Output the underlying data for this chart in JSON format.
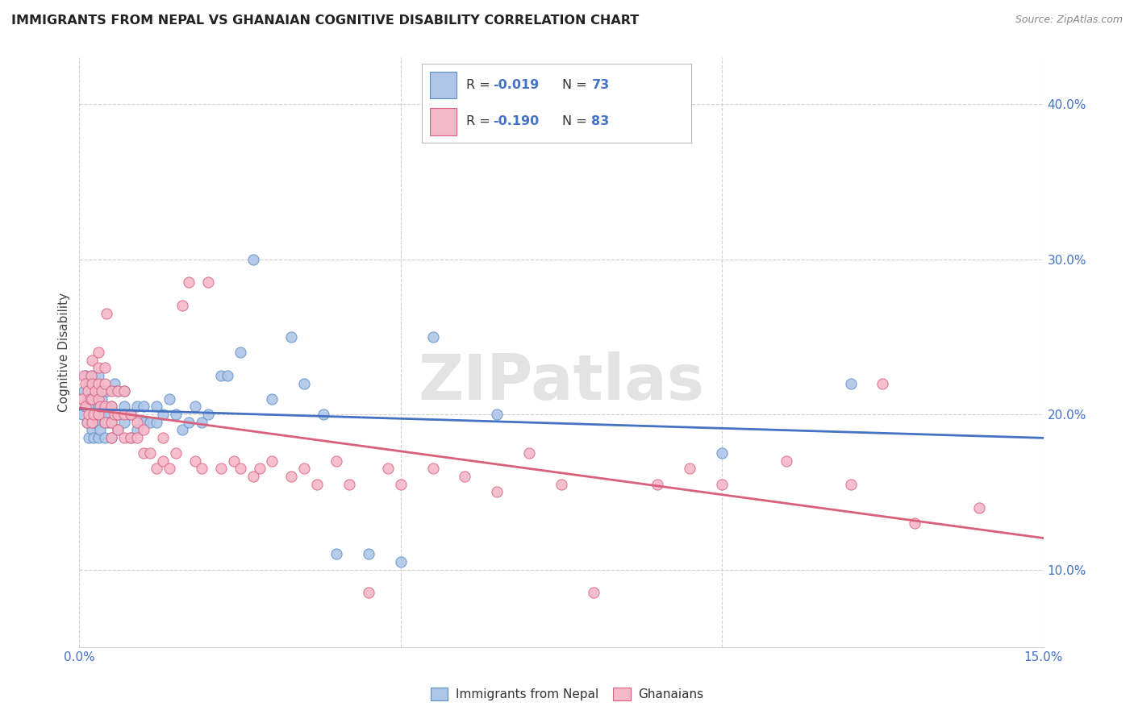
{
  "title": "IMMIGRANTS FROM NEPAL VS GHANAIAN COGNITIVE DISABILITY CORRELATION CHART",
  "source": "Source: ZipAtlas.com",
  "ylabel": "Cognitive Disability",
  "xlim": [
    0.0,
    0.15
  ],
  "ylim": [
    0.05,
    0.43
  ],
  "nepal_color": "#aec6e8",
  "nepal_edge_color": "#5b8ec4",
  "ghana_color": "#f5b8c8",
  "ghana_edge_color": "#d96080",
  "nepal_line_color": "#4472c4",
  "ghana_line_color": "#d9607a",
  "nepal_R": -0.019,
  "nepal_N": 73,
  "ghana_R": -0.19,
  "ghana_N": 83,
  "legend_label_nepal": "Immigrants from Nepal",
  "legend_label_ghana": "Ghanaians",
  "watermark": "ZIPatlas",
  "background_color": "#ffffff",
  "grid_color": "#d0d0d0",
  "nepal_x": [
    0.0005,
    0.0007,
    0.001,
    0.001,
    0.0012,
    0.0013,
    0.0015,
    0.0015,
    0.0017,
    0.0018,
    0.002,
    0.002,
    0.002,
    0.002,
    0.0022,
    0.0022,
    0.0025,
    0.0025,
    0.003,
    0.003,
    0.003,
    0.003,
    0.003,
    0.0032,
    0.0033,
    0.0035,
    0.004,
    0.004,
    0.004,
    0.0042,
    0.0045,
    0.005,
    0.005,
    0.005,
    0.0055,
    0.006,
    0.006,
    0.006,
    0.007,
    0.007,
    0.007,
    0.008,
    0.008,
    0.009,
    0.009,
    0.01,
    0.01,
    0.011,
    0.012,
    0.012,
    0.013,
    0.014,
    0.015,
    0.016,
    0.017,
    0.018,
    0.019,
    0.02,
    0.022,
    0.023,
    0.025,
    0.027,
    0.03,
    0.033,
    0.035,
    0.038,
    0.04,
    0.045,
    0.05,
    0.055,
    0.065,
    0.1,
    0.12
  ],
  "nepal_y": [
    0.2,
    0.215,
    0.205,
    0.225,
    0.195,
    0.21,
    0.185,
    0.22,
    0.195,
    0.205,
    0.19,
    0.2,
    0.215,
    0.225,
    0.185,
    0.195,
    0.2,
    0.21,
    0.185,
    0.195,
    0.205,
    0.215,
    0.225,
    0.19,
    0.2,
    0.21,
    0.185,
    0.195,
    0.2,
    0.215,
    0.195,
    0.185,
    0.195,
    0.205,
    0.22,
    0.19,
    0.2,
    0.215,
    0.195,
    0.205,
    0.215,
    0.185,
    0.2,
    0.19,
    0.205,
    0.195,
    0.205,
    0.195,
    0.195,
    0.205,
    0.2,
    0.21,
    0.2,
    0.19,
    0.195,
    0.205,
    0.195,
    0.2,
    0.225,
    0.225,
    0.24,
    0.3,
    0.21,
    0.25,
    0.22,
    0.2,
    0.11,
    0.11,
    0.105,
    0.25,
    0.2,
    0.175,
    0.22
  ],
  "ghana_x": [
    0.0005,
    0.0007,
    0.001,
    0.001,
    0.0012,
    0.0013,
    0.0015,
    0.0017,
    0.0018,
    0.002,
    0.002,
    0.002,
    0.002,
    0.0022,
    0.0025,
    0.003,
    0.003,
    0.003,
    0.003,
    0.003,
    0.0032,
    0.0035,
    0.004,
    0.004,
    0.004,
    0.004,
    0.0042,
    0.005,
    0.005,
    0.005,
    0.005,
    0.0055,
    0.006,
    0.006,
    0.006,
    0.007,
    0.007,
    0.007,
    0.008,
    0.008,
    0.009,
    0.009,
    0.01,
    0.01,
    0.011,
    0.012,
    0.013,
    0.013,
    0.014,
    0.015,
    0.016,
    0.017,
    0.018,
    0.019,
    0.02,
    0.022,
    0.024,
    0.025,
    0.027,
    0.028,
    0.03,
    0.033,
    0.035,
    0.037,
    0.04,
    0.042,
    0.045,
    0.048,
    0.05,
    0.055,
    0.06,
    0.065,
    0.07,
    0.075,
    0.08,
    0.09,
    0.095,
    0.1,
    0.11,
    0.12,
    0.125,
    0.13,
    0.14
  ],
  "ghana_y": [
    0.21,
    0.225,
    0.205,
    0.22,
    0.195,
    0.215,
    0.2,
    0.21,
    0.225,
    0.195,
    0.21,
    0.22,
    0.235,
    0.2,
    0.215,
    0.2,
    0.21,
    0.22,
    0.23,
    0.24,
    0.205,
    0.215,
    0.195,
    0.205,
    0.22,
    0.23,
    0.265,
    0.185,
    0.195,
    0.205,
    0.215,
    0.2,
    0.19,
    0.2,
    0.215,
    0.185,
    0.2,
    0.215,
    0.185,
    0.2,
    0.185,
    0.195,
    0.175,
    0.19,
    0.175,
    0.165,
    0.17,
    0.185,
    0.165,
    0.175,
    0.27,
    0.285,
    0.17,
    0.165,
    0.285,
    0.165,
    0.17,
    0.165,
    0.16,
    0.165,
    0.17,
    0.16,
    0.165,
    0.155,
    0.17,
    0.155,
    0.085,
    0.165,
    0.155,
    0.165,
    0.16,
    0.15,
    0.175,
    0.155,
    0.085,
    0.155,
    0.165,
    0.155,
    0.17,
    0.155,
    0.22,
    0.13,
    0.14
  ]
}
